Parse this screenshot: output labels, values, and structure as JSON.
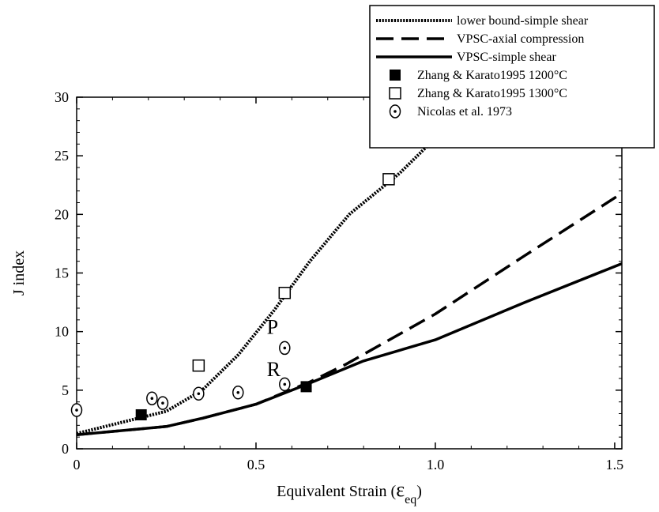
{
  "chart_data": {
    "type": "line",
    "xlabel": "Equivalent Strain (",
    "xlabel_symbol": "ε",
    "xlabel_subscript": "eq",
    "xlabel_close": ")",
    "ylabel": "J index",
    "xlim": [
      0,
      1.52
    ],
    "ylim": [
      0,
      30
    ],
    "x_ticks": [
      0,
      0.5,
      1.0,
      1.5
    ],
    "x_tick_labels": [
      "0",
      "0.5",
      "1.0",
      "1.5"
    ],
    "y_ticks": [
      0,
      5,
      10,
      15,
      20,
      25,
      30
    ],
    "y_tick_labels": [
      "0",
      "5",
      "10",
      "15",
      "20",
      "25",
      "30"
    ],
    "grid": false,
    "legend_position": "top-right",
    "series": [
      {
        "name": "lower bound-simple shear",
        "style": "dotted",
        "points": [
          [
            0,
            1.3
          ],
          [
            0.25,
            3.2
          ],
          [
            0.35,
            5.0
          ],
          [
            0.45,
            8.0
          ],
          [
            0.55,
            11.8
          ],
          [
            0.65,
            16.0
          ],
          [
            0.76,
            20.0
          ],
          [
            0.9,
            23.5
          ],
          [
            1.0,
            26.5
          ],
          [
            1.05,
            28.0
          ]
        ]
      },
      {
        "name": "VPSC-axial compression",
        "style": "dashed",
        "points": [
          [
            0,
            1.2
          ],
          [
            0.25,
            1.9
          ],
          [
            0.35,
            2.6
          ],
          [
            0.5,
            3.8
          ],
          [
            0.65,
            5.7
          ],
          [
            0.75,
            7.2
          ],
          [
            1.0,
            11.5
          ],
          [
            1.25,
            16.5
          ],
          [
            1.52,
            21.8
          ]
        ]
      },
      {
        "name": "VPSC-simple shear",
        "style": "solid",
        "points": [
          [
            0,
            1.2
          ],
          [
            0.25,
            1.9
          ],
          [
            0.35,
            2.6
          ],
          [
            0.5,
            3.8
          ],
          [
            0.65,
            5.6
          ],
          [
            0.8,
            7.5
          ],
          [
            1.0,
            9.3
          ],
          [
            1.25,
            12.5
          ],
          [
            1.52,
            15.8
          ]
        ]
      }
    ],
    "markers": [
      {
        "name": "Zhang & Karato1995 1200°C",
        "shape": "filled-square",
        "points": [
          [
            0.18,
            2.9
          ],
          [
            0.64,
            5.3
          ]
        ]
      },
      {
        "name": "Zhang & Karato1995 1300°C",
        "shape": "open-square",
        "points": [
          [
            0.34,
            7.1
          ],
          [
            0.58,
            13.3
          ],
          [
            0.87,
            23.0
          ]
        ]
      },
      {
        "name": "Nicolas et al. 1973",
        "shape": "dotted-circle",
        "points": [
          [
            0.0,
            3.3
          ],
          [
            0.21,
            4.3
          ],
          [
            0.24,
            3.9
          ],
          [
            0.34,
            4.7
          ],
          [
            0.45,
            4.8
          ],
          [
            0.58,
            8.6
          ],
          [
            0.58,
            5.5
          ]
        ]
      }
    ],
    "annotations": [
      {
        "text": "P",
        "x": 0.53,
        "y": 9.8
      },
      {
        "text": "R",
        "x": 0.53,
        "y": 6.2
      }
    ]
  }
}
